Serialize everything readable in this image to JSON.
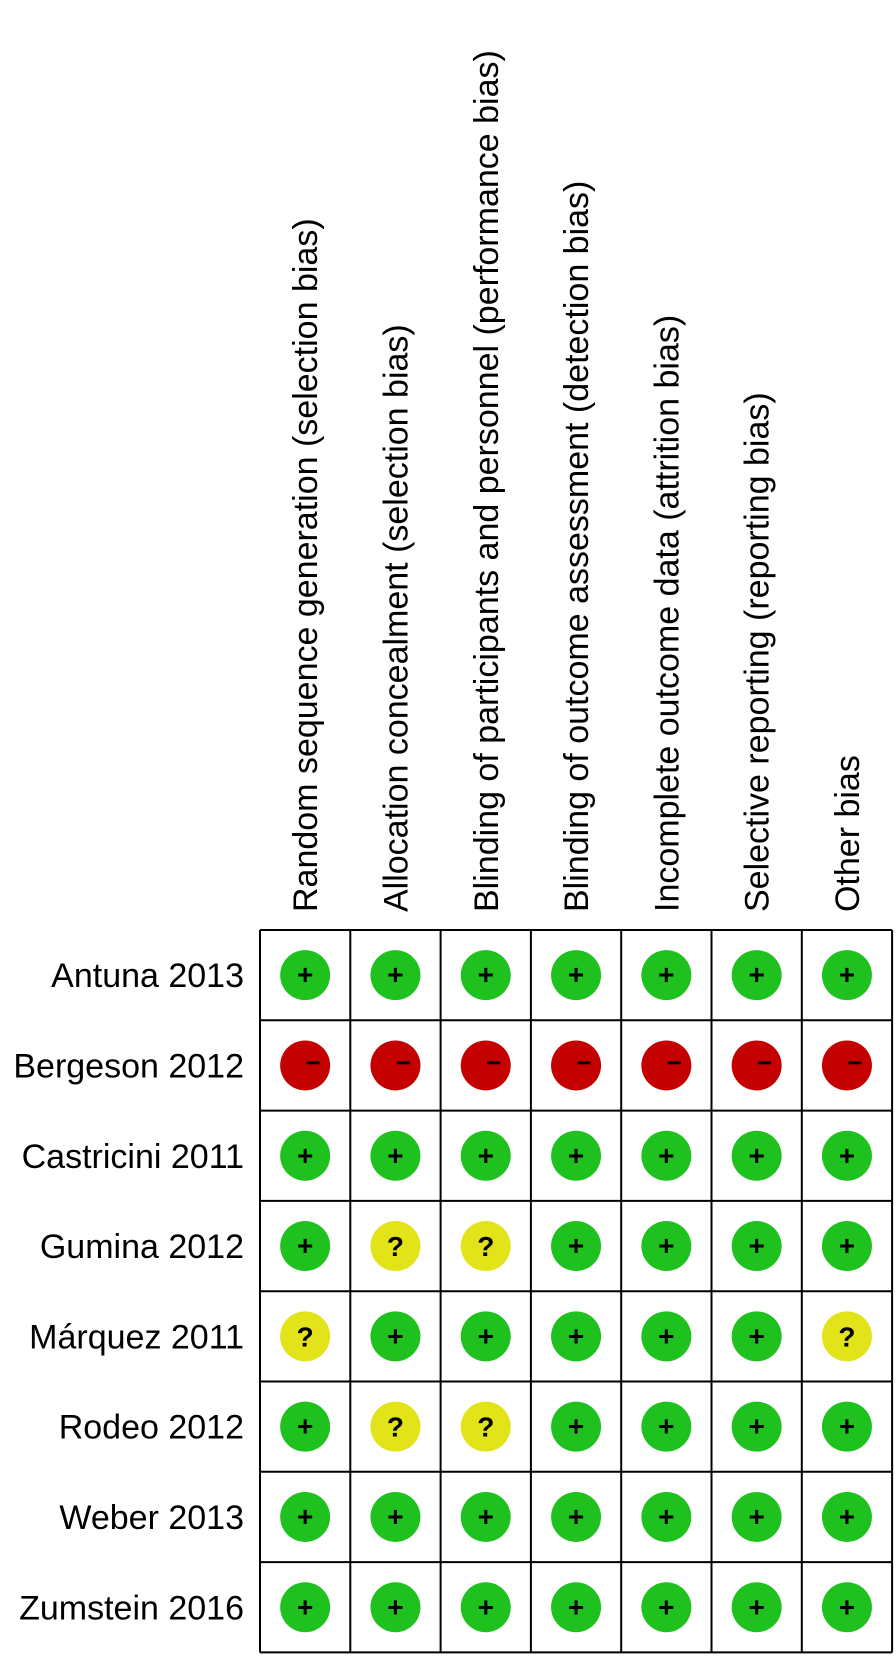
{
  "chart_data": {
    "type": "table",
    "columns": [
      "Random sequence generation (selection bias)",
      "Allocation concealment (selection bias)",
      "Blinding of participants and personnel (performance bias)",
      "Blinding of outcome assessment (detection bias)",
      "Incomplete outcome data (attrition bias)",
      "Selective reporting (reporting bias)",
      "Other bias"
    ],
    "rows": [
      {
        "study": "Antuna 2013",
        "judgements": [
          "low",
          "low",
          "low",
          "low",
          "low",
          "low",
          "low"
        ]
      },
      {
        "study": "Bergeson 2012",
        "judgements": [
          "high",
          "high",
          "high",
          "high",
          "high",
          "high",
          "high"
        ]
      },
      {
        "study": "Castricini 2011",
        "judgements": [
          "low",
          "low",
          "low",
          "low",
          "low",
          "low",
          "low"
        ]
      },
      {
        "study": "Gumina 2012",
        "judgements": [
          "low",
          "unclear",
          "unclear",
          "low",
          "low",
          "low",
          "low"
        ]
      },
      {
        "study": "Márquez 2011",
        "judgements": [
          "unclear",
          "low",
          "low",
          "low",
          "low",
          "low",
          "unclear"
        ]
      },
      {
        "study": "Rodeo 2012",
        "judgements": [
          "low",
          "unclear",
          "unclear",
          "low",
          "low",
          "low",
          "low"
        ]
      },
      {
        "study": "Weber 2013",
        "judgements": [
          "low",
          "low",
          "low",
          "low",
          "low",
          "low",
          "low"
        ]
      },
      {
        "study": "Zumstein 2016",
        "judgements": [
          "low",
          "low",
          "low",
          "low",
          "low",
          "low",
          "low"
        ]
      }
    ],
    "legend_symbols": {
      "low": {
        "symbol": "+",
        "color": "#1ec11e"
      },
      "high": {
        "symbol": "−",
        "color": "#c40000"
      },
      "unclear": {
        "symbol": "?",
        "color": "#e3e31a"
      }
    }
  }
}
